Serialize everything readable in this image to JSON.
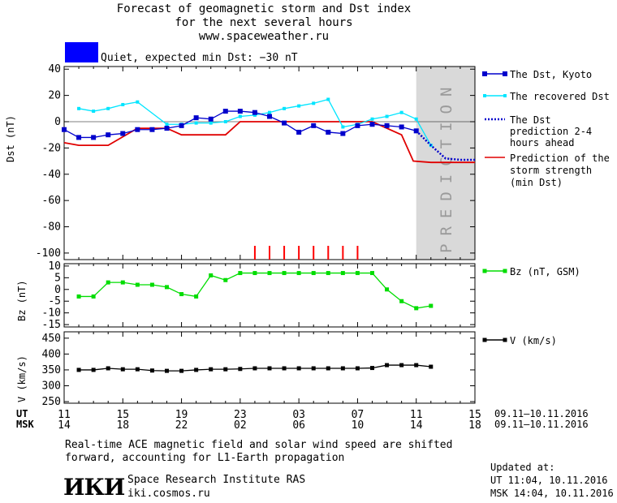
{
  "header": {
    "title_line1": "Forecast of geomagnetic storm and Dst index",
    "title_line2": "for the next several hours",
    "site": "www.spaceweather.ru",
    "status_text": "Quiet, expected min Dst: −30 nT",
    "status_color": "#0000ff"
  },
  "colors": {
    "dst": "#0000cc",
    "recovered": "#00e5ff",
    "prediction": "#0000cc",
    "storm": "#e00000",
    "bz": "#00dd00",
    "v": "#000000",
    "shade": "#d9d9d9",
    "ticks": "#ff0000"
  },
  "chart_data": [
    {
      "type": "line",
      "ylabel": "Dst (nT)",
      "ylim": [
        -105,
        42
      ],
      "yticks": [
        40,
        20,
        0,
        -20,
        -40,
        -60,
        -80,
        -100
      ],
      "xlim": [
        0,
        28
      ],
      "shade_label": "PREDICTION",
      "shade_range": [
        24,
        28
      ],
      "storm_ticks_x": [
        13,
        14,
        15,
        16,
        17,
        18,
        19,
        20
      ],
      "series": [
        {
          "name": "The Dst, Kyoto",
          "x": [
            0,
            1,
            2,
            3,
            4,
            5,
            6,
            7,
            8,
            9,
            10,
            11,
            12,
            13,
            14,
            15,
            16,
            17,
            18,
            19,
            20,
            21,
            22,
            23,
            24
          ],
          "values": [
            -6,
            -12,
            -12,
            -10,
            -9,
            -6,
            -6,
            -5,
            -3,
            3,
            2,
            8,
            8,
            7,
            4,
            -1,
            -8,
            -3,
            -8,
            -9,
            -3,
            -2,
            -3,
            -4,
            -7
          ]
        },
        {
          "name": "The recovered Dst",
          "x": [
            1,
            2,
            3,
            4,
            5,
            7,
            8,
            9,
            10,
            11,
            12,
            13,
            14,
            15,
            16,
            17,
            18,
            19,
            20,
            21,
            22,
            23,
            24,
            25
          ],
          "values": [
            10,
            8,
            10,
            13,
            15,
            -2,
            -2,
            -1,
            -1,
            0,
            4,
            5,
            7,
            10,
            12,
            14,
            17,
            -4,
            -2,
            2,
            4,
            7,
            2,
            -18
          ]
        },
        {
          "name": "The Dst prediction 2-4 hours ahead",
          "x": [
            24,
            25,
            26,
            27,
            28
          ],
          "values": [
            -7,
            -18,
            -28,
            -29,
            -29
          ]
        },
        {
          "name": "Prediction of the storm strength (min Dst)",
          "x": [
            0,
            1,
            3,
            5,
            7,
            8,
            10,
            11,
            12,
            20,
            21,
            23,
            23.8,
            25,
            28
          ],
          "values": [
            -16,
            -18,
            -18,
            -5,
            -5,
            -10,
            -10,
            -10,
            0,
            0,
            0,
            -10,
            -30,
            -31,
            -31
          ]
        }
      ]
    },
    {
      "type": "line",
      "ylabel": "Bz (nT)",
      "ylim": [
        -16,
        11
      ],
      "yticks": [
        10,
        5,
        0,
        -5,
        -10,
        -15
      ],
      "series": [
        {
          "name": "Bz (nT, GSM)",
          "x": [
            1,
            2,
            3,
            4,
            5,
            6,
            7,
            8,
            9,
            10,
            11,
            12,
            13,
            14,
            15,
            16,
            17,
            18,
            19,
            20,
            21,
            22,
            23,
            24,
            25
          ],
          "values": [
            -3,
            -3,
            3,
            3,
            2,
            2,
            1,
            -2,
            -3,
            6,
            4,
            7,
            7,
            7,
            7,
            7,
            7,
            7,
            7,
            7,
            7,
            0,
            -5,
            -8,
            -7
          ]
        }
      ]
    },
    {
      "type": "line",
      "ylabel": "V (km/s)",
      "ylim": [
        245,
        470
      ],
      "yticks": [
        450,
        400,
        350,
        300,
        250
      ],
      "series": [
        {
          "name": "V (km/s)",
          "x": [
            1,
            2,
            3,
            4,
            5,
            6,
            7,
            8,
            9,
            10,
            11,
            12,
            13,
            14,
            15,
            16,
            17,
            18,
            19,
            20,
            21,
            22,
            23,
            24,
            25
          ],
          "values": [
            350,
            350,
            355,
            352,
            352,
            348,
            347,
            347,
            350,
            352,
            352,
            353,
            355,
            355,
            355,
            355,
            355,
            355,
            355,
            355,
            356,
            365,
            365,
            365,
            360
          ]
        }
      ]
    }
  ],
  "xaxis": {
    "ut_label": "UT",
    "msk_label": "MSK",
    "ut_ticks": [
      "11",
      "15",
      "19",
      "23",
      "03",
      "07",
      "11",
      "15"
    ],
    "msk_ticks": [
      "14",
      "18",
      "22",
      "02",
      "06",
      "10",
      "14",
      "18"
    ],
    "ut_range": "09.11–10.11.2016",
    "msk_range": "09.11–10.11.2016"
  },
  "footer": {
    "note_line1": "Real-time ACE magnetic field and solar wind speed are shifted",
    "note_line2": "forward, accounting for L1-Earth propagation",
    "logo": "ИКИ",
    "institute": "Space Research Institute RAS",
    "site": "iki.cosmos.ru",
    "updated_label": "Updated at:",
    "updated_ut": "UT  11:04, 10.11.2016",
    "updated_msk": "MSK 14:04, 10.11.2016"
  }
}
